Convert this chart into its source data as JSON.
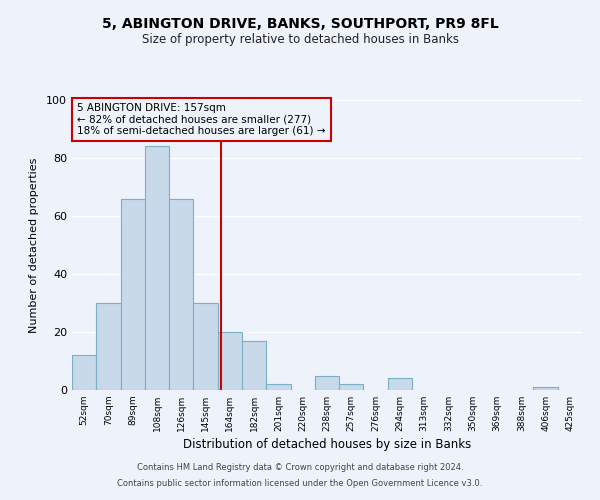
{
  "title": "5, ABINGTON DRIVE, BANKS, SOUTHPORT, PR9 8FL",
  "subtitle": "Size of property relative to detached houses in Banks",
  "xlabel": "Distribution of detached houses by size in Banks",
  "ylabel": "Number of detached properties",
  "categories": [
    "52sqm",
    "70sqm",
    "89sqm",
    "108sqm",
    "126sqm",
    "145sqm",
    "164sqm",
    "182sqm",
    "201sqm",
    "220sqm",
    "238sqm",
    "257sqm",
    "276sqm",
    "294sqm",
    "313sqm",
    "332sqm",
    "350sqm",
    "369sqm",
    "388sqm",
    "406sqm",
    "425sqm"
  ],
  "values": [
    12,
    30,
    66,
    84,
    66,
    30,
    20,
    17,
    2,
    0,
    5,
    2,
    0,
    4,
    0,
    0,
    0,
    0,
    0,
    1,
    0
  ],
  "bar_color": "#c8d9ea",
  "bar_edge_color": "#7aafc8",
  "ylim": [
    0,
    100
  ],
  "yticks": [
    0,
    20,
    40,
    60,
    80,
    100
  ],
  "annotation_text_line1": "5 ABINGTON DRIVE: 157sqm",
  "annotation_text_line2": "← 82% of detached houses are smaller (277)",
  "annotation_text_line3": "18% of semi-detached houses are larger (61) →",
  "red_line_color": "#cc0000",
  "background_color": "#eef2fb",
  "grid_color": "#ffffff",
  "footer_line1": "Contains HM Land Registry data © Crown copyright and database right 2024.",
  "footer_line2": "Contains public sector information licensed under the Open Government Licence v3.0."
}
